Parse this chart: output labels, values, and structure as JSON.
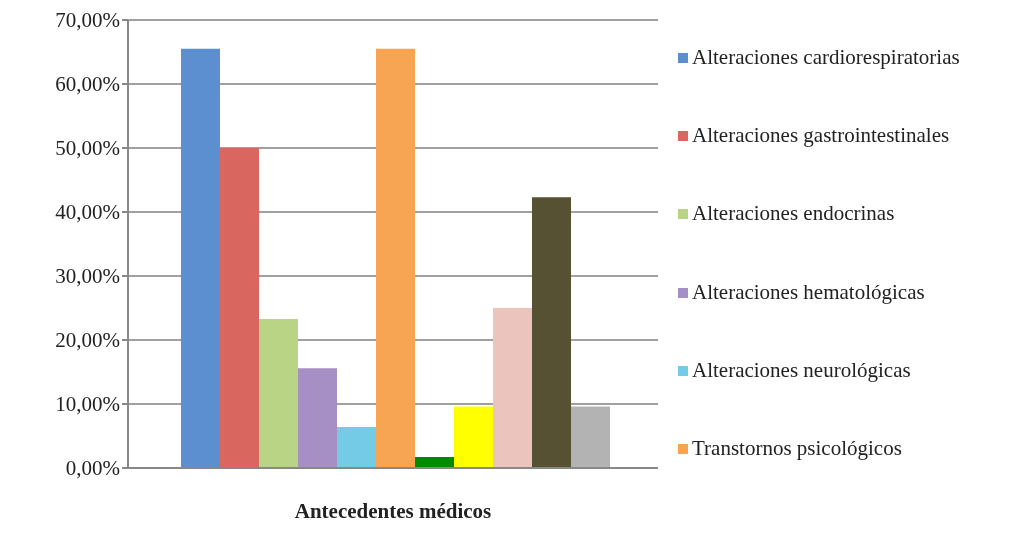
{
  "chart_data": {
    "type": "bar",
    "xlabel": "Antecedentes médicos",
    "categories": [
      null
    ],
    "series": [
      {
        "name": "Alteraciones cardiorespiratorias",
        "color": "#5b8fd0",
        "values": [
          65.5
        ]
      },
      {
        "name": "Alteraciones gastrointestinales",
        "color": "#d9665f",
        "values": [
          50
        ]
      },
      {
        "name": "Alteraciones endocrinas",
        "color": "#b8d484",
        "values": [
          23.3
        ]
      },
      {
        "name": "Alteraciones hematológicas",
        "color": "#a68fc4",
        "values": [
          15.6
        ]
      },
      {
        "name": "Alteraciones neurológicas",
        "color": "#73cbe6",
        "values": [
          6.4
        ]
      },
      {
        "name": "Transtornos psicológicos",
        "color": "#f7a552",
        "values": [
          65.5
        ]
      },
      {
        "color": "#008a00",
        "values": [
          1.7
        ]
      },
      {
        "color": "#ffff00",
        "values": [
          9.6
        ]
      },
      {
        "color": "#ebc5bd",
        "values": [
          25
        ]
      },
      {
        "color": "#565133",
        "values": [
          42.3
        ]
      },
      {
        "color": "#b3b3b3",
        "values": [
          9.6
        ]
      }
    ],
    "ylim": [
      0,
      70
    ],
    "yticks": [
      {
        "value": 0,
        "label": "0,00%"
      },
      {
        "value": 10,
        "label": "10,00%"
      },
      {
        "value": 20,
        "label": "20,00%"
      },
      {
        "value": 30,
        "label": "30,00%"
      },
      {
        "value": 40,
        "label": "40,00%"
      },
      {
        "value": 50,
        "label": "50,00%"
      },
      {
        "value": 60,
        "label": "60,00%"
      },
      {
        "value": 70,
        "label": "70,00%"
      }
    ],
    "grid": "y",
    "legend": "right"
  }
}
